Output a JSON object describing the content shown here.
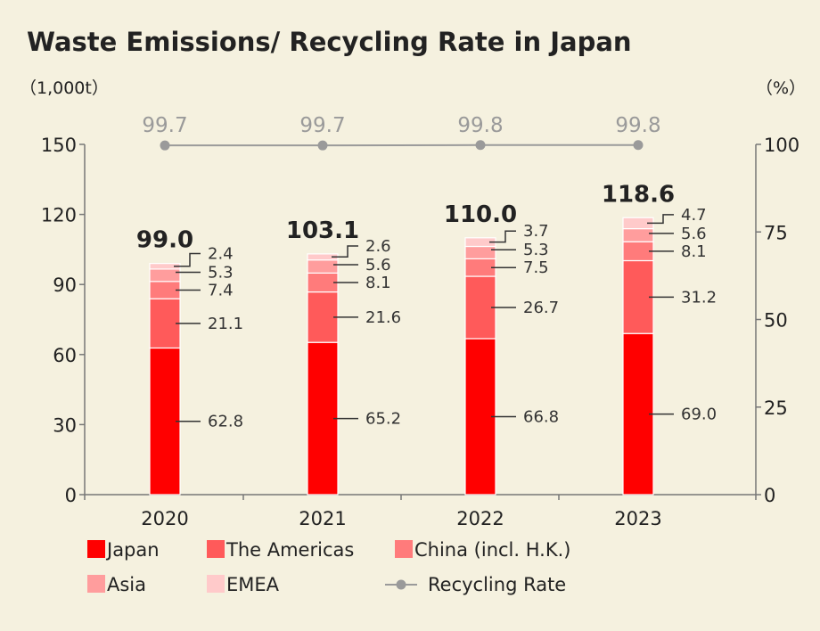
{
  "chart_data": {
    "type": "bar",
    "stacked": true,
    "title": "Waste Emissions/ Recycling Rate in Japan",
    "y_left_unit": "（1,000t）",
    "y_right_unit": "（%）",
    "ylim": [
      0,
      150
    ],
    "y_ticks": [
      0,
      30,
      60,
      90,
      120,
      150
    ],
    "y2lim": [
      0,
      100
    ],
    "y2_ticks": [
      0,
      25,
      50,
      75,
      100
    ],
    "categories": [
      "2020",
      "2021",
      "2022",
      "2023"
    ],
    "series": [
      {
        "name": "Japan",
        "color": "#ff0000",
        "values": [
          62.8,
          65.2,
          66.8,
          69.0
        ],
        "labels": [
          "62.8",
          "65.2",
          "66.8",
          "69.0"
        ]
      },
      {
        "name": "The Americas",
        "color": "#ff5a5a",
        "values": [
          21.1,
          21.6,
          26.7,
          31.2
        ],
        "labels": [
          "21.1",
          "21.6",
          "26.7",
          "31.2"
        ]
      },
      {
        "name": "China (incl. H.K.)",
        "color": "#ff7b7b",
        "values": [
          7.4,
          8.1,
          7.5,
          8.1
        ],
        "labels": [
          "7.4",
          "8.1",
          "7.5",
          "8.1"
        ]
      },
      {
        "name": "Asia",
        "color": "#ff9d9d",
        "values": [
          5.3,
          5.6,
          5.3,
          5.6
        ],
        "labels": [
          "5.3",
          "5.6",
          "5.3",
          "5.6"
        ]
      },
      {
        "name": "EMEA",
        "color": "#ffcaca",
        "values": [
          2.4,
          2.6,
          3.7,
          4.7
        ],
        "labels": [
          "2.4",
          "2.6",
          "3.7",
          "4.7"
        ]
      }
    ],
    "totals": [
      "99.0",
      "103.1",
      "110.0",
      "118.6"
    ],
    "line_series": {
      "name": "Recycling Rate",
      "color": "#9a9a9a",
      "axis": "right",
      "values": [
        99.7,
        99.7,
        99.8,
        99.8
      ],
      "labels": [
        "99.7",
        "99.7",
        "99.8",
        "99.8"
      ]
    },
    "legend_position": "bottom"
  }
}
